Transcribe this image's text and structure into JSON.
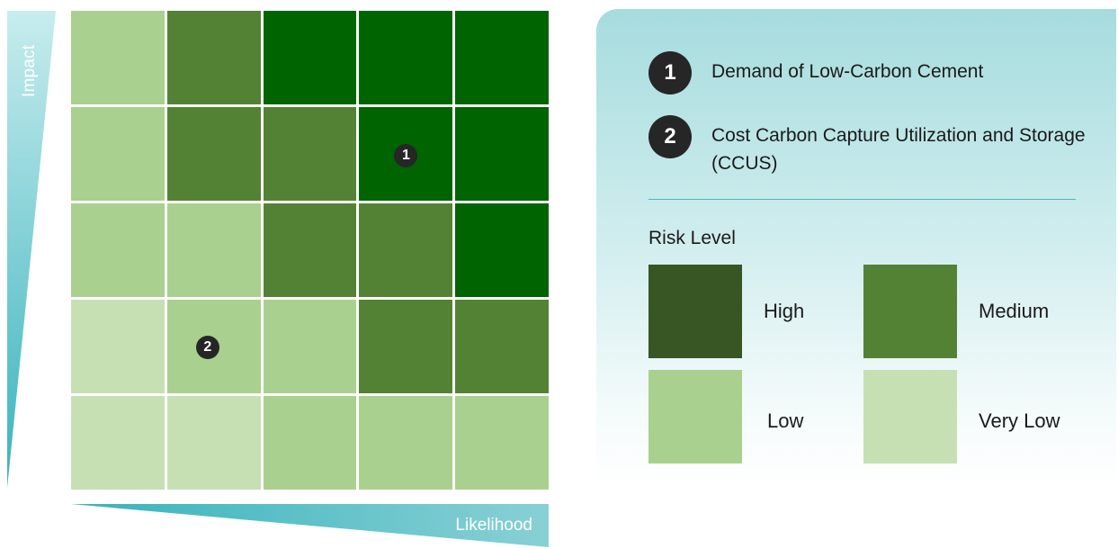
{
  "axes": {
    "y_label": "Impact",
    "x_label": "Likelihood",
    "gradient_light": "#c7ecee",
    "gradient_dark": "#38b3bc"
  },
  "matrix": {
    "colors": {
      "very_dark": "#006400",
      "medium": "#548235",
      "low": "#a9d08e",
      "very_low": "#c6e0b4"
    },
    "rows": [
      [
        "low",
        "medium",
        "very_dark",
        "very_dark",
        "very_dark"
      ],
      [
        "low",
        "medium",
        "medium",
        "very_dark",
        "very_dark"
      ],
      [
        "low",
        "low",
        "medium",
        "medium",
        "very_dark"
      ],
      [
        "very_low",
        "low",
        "low",
        "medium",
        "medium"
      ],
      [
        "very_low",
        "very_low",
        "low",
        "low",
        "low"
      ]
    ],
    "markers": [
      {
        "number": "1",
        "row": 1,
        "col": 3
      },
      {
        "number": "2",
        "row": 3,
        "col": 1
      }
    ]
  },
  "legend": {
    "items": [
      {
        "number": "1",
        "text": "Demand of Low-Carbon Cement"
      },
      {
        "number": "2",
        "text": "Cost Carbon Capture Utilization and Storage (CCUS)"
      }
    ],
    "risk_title": "Risk Level",
    "levels": [
      {
        "label": "High",
        "color": "#375623"
      },
      {
        "label": "Medium",
        "color": "#548235"
      },
      {
        "label": "Low",
        "color": "#a9d08e"
      },
      {
        "label": "Very Low",
        "color": "#c6e0b4"
      }
    ]
  }
}
